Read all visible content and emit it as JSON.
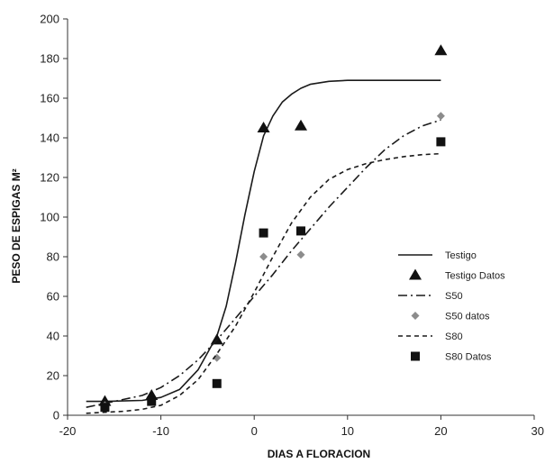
{
  "chart_data": {
    "type": "scatter",
    "xlabel": "DIAS A FLORACION",
    "ylabel": "PESO DE ESPIGAS M²",
    "xlim": [
      -20,
      30
    ],
    "ylim": [
      0,
      200
    ],
    "x_ticks": [
      "-20",
      "-10",
      "0",
      "10",
      "20",
      "30"
    ],
    "y_ticks": [
      "0",
      "20",
      "40",
      "60",
      "80",
      "100",
      "120",
      "140",
      "160",
      "180",
      "200"
    ],
    "grid": false,
    "legend_position": "right",
    "series": [
      {
        "name": "Testigo",
        "kind": "line",
        "dash": "solid",
        "x": [
          -18,
          -16,
          -12,
          -10,
          -8,
          -6,
          -4,
          -3,
          -2,
          -1,
          0,
          1,
          2,
          3,
          4,
          5,
          6,
          8,
          10,
          15,
          20
        ],
        "y": [
          7,
          7,
          7.5,
          9,
          13,
          23,
          40,
          55,
          77,
          101,
          123,
          141,
          151,
          158,
          162,
          165,
          167,
          168.5,
          169,
          169,
          169
        ]
      },
      {
        "name": "Testigo Datos",
        "kind": "scatter",
        "marker": "triangle",
        "x": [
          -16,
          -11,
          -4,
          1,
          5,
          20
        ],
        "y": [
          7,
          10,
          38,
          145,
          146,
          184
        ]
      },
      {
        "name": "S50",
        "kind": "line",
        "dash": "dashdot",
        "x": [
          -18,
          -16,
          -14,
          -12,
          -10,
          -8,
          -6,
          -4,
          -2,
          0,
          2,
          4,
          6,
          8,
          10,
          12,
          14,
          16,
          18,
          20
        ],
        "y": [
          4,
          6,
          8,
          10,
          14,
          20,
          28,
          38,
          49,
          60,
          71,
          83,
          94,
          105,
          115,
          125,
          134,
          141,
          146,
          149
        ]
      },
      {
        "name": "S50 datos",
        "kind": "scatter",
        "marker": "diamond",
        "x": [
          -16,
          -11,
          -4,
          1,
          5,
          20
        ],
        "y": [
          5,
          7,
          29,
          80,
          81,
          151
        ]
      },
      {
        "name": "S80",
        "kind": "line",
        "dash": "dashed",
        "x": [
          -18,
          -16,
          -14,
          -12,
          -10,
          -8,
          -6,
          -4,
          -2,
          0,
          2,
          4,
          6,
          8,
          10,
          12,
          14,
          16,
          18,
          20
        ],
        "y": [
          1,
          1.5,
          2,
          3,
          5,
          10,
          18,
          31,
          45,
          62,
          80,
          97,
          110,
          119,
          124,
          127,
          129,
          130.5,
          131.5,
          132
        ]
      },
      {
        "name": "S80 Datos",
        "kind": "scatter",
        "marker": "square",
        "x": [
          -16,
          -11,
          -4,
          1,
          5,
          20
        ],
        "y": [
          4,
          7,
          16,
          92,
          93,
          138
        ]
      }
    ],
    "colors": {
      "Testigo": "#1a1a1a",
      "Testigo Datos": "#111111",
      "S50": "#1a1a1a",
      "S50 datos": "#8c8c8c",
      "S80": "#1a1a1a",
      "S80 Datos": "#111111"
    }
  }
}
